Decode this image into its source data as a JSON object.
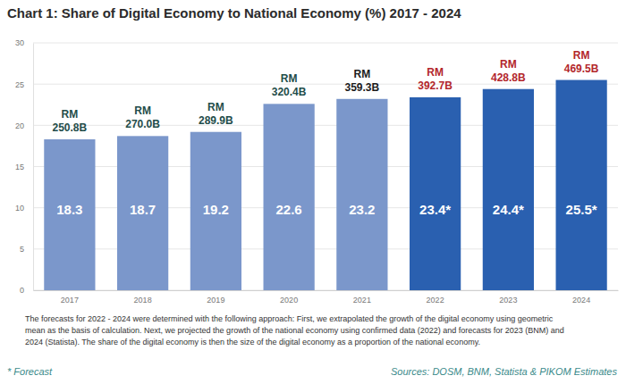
{
  "chart_data": {
    "type": "bar",
    "title": "Chart 1: Share of Digital Economy to National Economy (%) 2017 - 2024",
    "categories": [
      "2017",
      "2018",
      "2019",
      "2020",
      "2021",
      "2022",
      "2023",
      "2024"
    ],
    "values": [
      18.3,
      18.7,
      19.2,
      22.6,
      23.2,
      23.4,
      24.4,
      25.5
    ],
    "value_labels": [
      "18.3",
      "18.7",
      "19.2",
      "22.6",
      "23.2",
      "23.4*",
      "24.4*",
      "25.5*"
    ],
    "data_labels": true,
    "colors": [
      "#7b97cb",
      "#7b97cb",
      "#7b97cb",
      "#7b97cb",
      "#7b97cb",
      "#2a60b0",
      "#2a60b0",
      "#2a60b0"
    ],
    "top_labels": [
      [
        "RM",
        "250.8B"
      ],
      [
        "RM",
        "270.0B"
      ],
      [
        "RM",
        "289.9B"
      ],
      [
        "RM",
        "320.4B"
      ],
      [
        "RM",
        "359.3B"
      ],
      [
        "RM",
        "392.7B"
      ],
      [
        "RM",
        "428.8B"
      ],
      [
        "RM",
        "469.5B"
      ]
    ],
    "ylim": [
      0,
      30
    ],
    "yticks": [
      0,
      5,
      10,
      15,
      20,
      25,
      30
    ],
    "grid": true,
    "notes": [
      "The forecasts for 2022 - 2024 were determined with the following approach: First, we extrapolated the growth of the digital economy using geometric",
      "mean as the basis of calculation. Next, we projected the growth of the national economy using confirmed data (2022) and forecasts for 2023 (BNM) and",
      "2024 (Statista). The share of the digital economy is then the size of the digital economy as a proportion of the national economy."
    ],
    "footnote": "* Forecast",
    "source": "Sources: DOSM, BNM, Statista & PIKOM Estimates"
  }
}
